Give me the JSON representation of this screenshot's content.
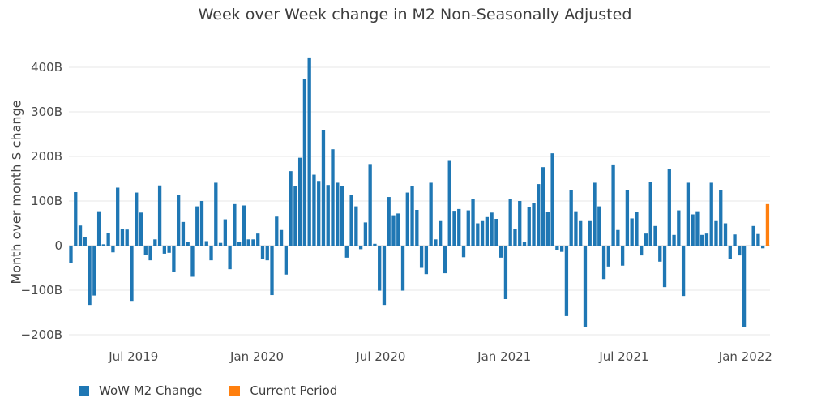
{
  "title": "Week over Week change in M2 Non-Seasonally Adjusted",
  "chart_data": {
    "type": "bar",
    "title": "Week over Week change in M2 Non-Seasonally Adjusted",
    "xlabel": "",
    "ylabel": "Month over month $ change",
    "units": "billions of dollars (B)",
    "grid": true,
    "legend_position": "bottom-left",
    "ylim": [
      -220,
      440
    ],
    "yticks": [
      {
        "label": "400B",
        "value": 400
      },
      {
        "label": "300B",
        "value": 300
      },
      {
        "label": "200B",
        "value": 200
      },
      {
        "label": "100B",
        "value": 100
      },
      {
        "label": "0",
        "value": 0
      },
      {
        "label": "−100B",
        "value": -100
      },
      {
        "label": "−200B",
        "value": -200
      }
    ],
    "xticks": [
      {
        "label": "Jul 2019",
        "index": 13.4
      },
      {
        "label": "Jan 2020",
        "index": 39.8
      },
      {
        "label": "Jul 2020",
        "index": 66.3
      },
      {
        "label": "Jan 2021",
        "index": 92.7
      },
      {
        "label": "Jul 2021",
        "index": 118.3
      },
      {
        "label": "Jan 2022",
        "index": 144.3
      }
    ],
    "series": [
      {
        "name": "WoW M2 Change",
        "color": "#1f77b4",
        "values": [
          -40,
          120,
          45,
          20,
          -133,
          -112,
          77,
          3,
          28,
          -15,
          130,
          38,
          36,
          -124,
          119,
          74,
          -20,
          -33,
          14,
          135,
          -18,
          -16,
          -60,
          113,
          53,
          9,
          -70,
          88,
          100,
          10,
          -33,
          141,
          6,
          59,
          -53,
          93,
          8,
          90,
          14,
          14,
          27,
          -30,
          -33,
          -111,
          65,
          35,
          -65,
          167,
          133,
          197,
          374,
          422,
          159,
          145,
          260,
          136,
          216,
          141,
          133,
          -27,
          113,
          88,
          -8,
          52,
          183,
          4,
          -101,
          -133,
          109,
          68,
          72,
          -101,
          119,
          133,
          80,
          -50,
          -64,
          141,
          14,
          55,
          -62,
          190,
          78,
          82,
          -26,
          79,
          105,
          50,
          55,
          64,
          74,
          60,
          -27,
          -120,
          105,
          38,
          100,
          9,
          87,
          95,
          138,
          176,
          75,
          207,
          -10,
          -14,
          -158,
          125,
          77,
          55,
          -183,
          55,
          141,
          88,
          -75,
          -47,
          182,
          35,
          -45,
          125,
          61,
          76,
          -22,
          27,
          142,
          44,
          -36,
          -93,
          171,
          24,
          79,
          -113,
          141,
          70,
          77,
          24,
          27,
          141,
          55,
          124,
          50,
          -30,
          25,
          -22,
          -183,
          0,
          44,
          26,
          -6
        ]
      },
      {
        "name": "Current Period",
        "color": "#ff7f0e",
        "values": [
          93
        ]
      }
    ],
    "legend": {
      "items": [
        {
          "label": "WoW M2 Change",
          "color": "#1f77b4"
        },
        {
          "label": "Current Period",
          "color": "#ff7f0e"
        }
      ]
    }
  }
}
